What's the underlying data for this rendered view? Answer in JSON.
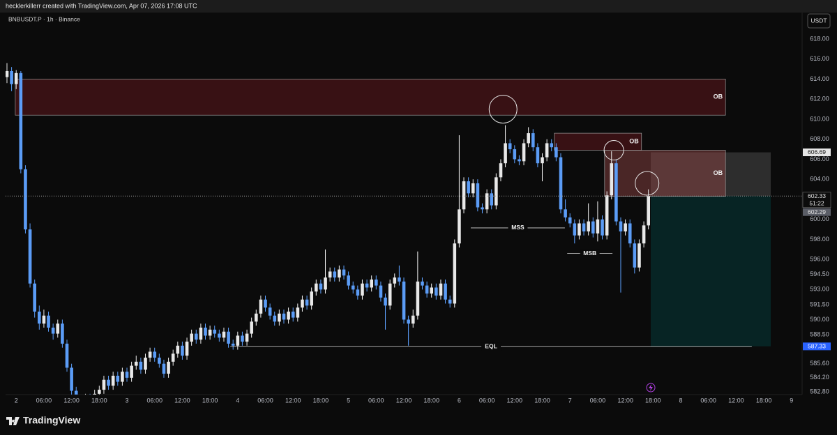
{
  "header": "hecklerkillerr created with TradingView.com, Apr 07, 2026 17:08 UTC",
  "footer": "TradingView",
  "chart_data": {
    "type": "candlestick",
    "title": "BNBUSDT.P · 1h · Binance",
    "currency": "USDT",
    "up_color": "#e8e8e8",
    "down_color": "#5b9cf6",
    "open": [
      614.2,
      614.8,
      613.5,
      614.6,
      605.0,
      599.0,
      593.6,
      590.8,
      589.6,
      590.4,
      589.2,
      588.6,
      589.6,
      587.6,
      585.2,
      582.9,
      582.0,
      581.6,
      582.2,
      581.8,
      582.6,
      583.0,
      584.0,
      583.4,
      584.4,
      583.8,
      584.8,
      584.2,
      585.4,
      585.8,
      585.0,
      586.2,
      586.8,
      586.2,
      585.6,
      584.6,
      585.8,
      586.6,
      587.4,
      586.4,
      587.8,
      588.6,
      588.0,
      589.2,
      588.4,
      589.0,
      588.6,
      588.2,
      588.8,
      587.6,
      587.4,
      588.4,
      587.8,
      588.6,
      589.8,
      590.6,
      592.0,
      591.2,
      590.4,
      589.8,
      590.6,
      590.0,
      590.8,
      590.2,
      591.2,
      592.0,
      591.4,
      592.8,
      593.6,
      593.0,
      594.2,
      594.8,
      594.2,
      595.0,
      594.4,
      593.4,
      593.0,
      592.4,
      593.6,
      593.2,
      594.0,
      593.4,
      592.2,
      591.4,
      593.6,
      594.2,
      593.8,
      590.0,
      589.6,
      590.4,
      593.8,
      593.4,
      592.6,
      593.2,
      592.4,
      593.6,
      592.0,
      591.6,
      597.6,
      601.0,
      603.8,
      602.6,
      603.6,
      601.2,
      601.0,
      602.6,
      601.4,
      604.2,
      605.6,
      607.6,
      607.0,
      606.0,
      605.8,
      607.6,
      608.6,
      607.2,
      605.6,
      606.2,
      607.6,
      607.2,
      606.2,
      601.0,
      600.2,
      599.6,
      598.4,
      599.6,
      598.8,
      599.8,
      598.6,
      600.0,
      598.4,
      602.4,
      605.6,
      599.8,
      598.8,
      599.6,
      597.6,
      595.2,
      597.6,
      599.4
    ],
    "high": [
      615.6,
      615.2,
      614.9,
      614.8,
      605.4,
      599.6,
      594.0,
      591.4,
      591.0,
      590.8,
      589.6,
      590.0,
      590.0,
      588.0,
      585.6,
      583.3,
      582.4,
      582.6,
      582.6,
      583.0,
      583.4,
      584.4,
      584.4,
      584.8,
      584.8,
      585.2,
      585.2,
      585.8,
      586.4,
      586.2,
      586.6,
      587.2,
      587.2,
      586.6,
      586.0,
      586.2,
      587.0,
      587.8,
      587.8,
      588.2,
      589.0,
      589.0,
      589.6,
      589.6,
      589.4,
      589.4,
      589.0,
      589.2,
      589.2,
      588.0,
      588.8,
      588.8,
      589.0,
      590.2,
      591.0,
      592.4,
      592.4,
      591.6,
      590.8,
      591.0,
      591.0,
      591.2,
      591.2,
      591.6,
      592.4,
      592.4,
      593.2,
      594.0,
      594.0,
      597.0,
      595.2,
      595.2,
      595.4,
      595.4,
      594.8,
      593.8,
      593.4,
      594.0,
      594.0,
      594.4,
      594.4,
      593.8,
      592.6,
      594.0,
      594.6,
      595.4,
      594.2,
      590.4,
      591.0,
      596.8,
      594.2,
      593.8,
      593.6,
      593.6,
      594.0,
      594.0,
      592.4,
      598.0,
      608.4,
      604.2,
      604.2,
      604.0,
      604.0,
      601.6,
      603.0,
      603.0,
      604.6,
      606.0,
      609.4,
      608.0,
      607.4,
      606.4,
      608.0,
      609.2,
      609.0,
      607.6,
      606.6,
      608.0,
      608.0,
      607.6,
      606.6,
      602.0,
      600.6,
      600.0,
      600.0,
      600.0,
      601.6,
      600.2,
      601.8,
      600.4,
      602.8,
      606.8,
      606.0,
      600.2,
      600.0,
      600.0,
      598.0,
      598.0,
      599.8,
      603.0
    ],
    "low": [
      613.6,
      612.8,
      613.0,
      604.6,
      598.6,
      593.2,
      590.2,
      589.0,
      589.2,
      588.8,
      588.0,
      588.2,
      587.2,
      584.8,
      582.4,
      581.6,
      581.2,
      581.2,
      581.4,
      581.4,
      582.2,
      582.6,
      583.0,
      583.0,
      583.4,
      583.4,
      583.8,
      583.8,
      585.0,
      584.6,
      584.6,
      585.8,
      585.8,
      585.2,
      584.2,
      584.2,
      585.4,
      586.2,
      586.0,
      586.0,
      587.4,
      587.6,
      587.6,
      588.0,
      588.0,
      588.2,
      587.8,
      587.8,
      587.2,
      587.0,
      587.0,
      587.4,
      587.4,
      588.2,
      589.4,
      590.2,
      590.8,
      590.0,
      589.4,
      589.4,
      589.6,
      589.6,
      589.8,
      589.8,
      590.8,
      591.0,
      591.0,
      592.4,
      592.6,
      592.6,
      593.8,
      593.8,
      593.8,
      594.0,
      593.0,
      592.6,
      592.0,
      592.0,
      592.8,
      592.8,
      593.0,
      591.8,
      589.0,
      591.0,
      593.2,
      593.4,
      589.6,
      587.4,
      589.2,
      590.0,
      593.0,
      592.2,
      592.2,
      592.0,
      592.0,
      591.6,
      591.2,
      591.2,
      597.2,
      600.6,
      602.2,
      602.2,
      600.8,
      600.6,
      600.6,
      601.0,
      601.0,
      603.8,
      605.2,
      606.6,
      605.6,
      605.4,
      605.4,
      607.2,
      606.8,
      605.2,
      603.8,
      605.8,
      606.8,
      605.8,
      600.6,
      599.8,
      599.2,
      597.6,
      598.0,
      598.4,
      598.4,
      598.2,
      597.8,
      598.0,
      598.0,
      602.0,
      599.4,
      592.7,
      598.4,
      597.2,
      594.6,
      594.8,
      597.2,
      599.0
    ],
    "close": [
      614.8,
      613.5,
      614.6,
      605.0,
      599.0,
      593.6,
      590.8,
      589.6,
      590.4,
      589.2,
      588.6,
      589.6,
      587.6,
      585.2,
      582.9,
      582.0,
      581.6,
      582.2,
      581.8,
      582.6,
      583.0,
      584.0,
      583.4,
      584.4,
      583.8,
      584.8,
      584.2,
      585.4,
      585.8,
      585.0,
      586.2,
      586.8,
      586.2,
      585.6,
      584.6,
      585.8,
      586.6,
      587.4,
      586.4,
      587.8,
      588.6,
      588.0,
      589.2,
      588.4,
      589.0,
      588.6,
      588.2,
      588.8,
      587.6,
      587.4,
      588.4,
      587.8,
      588.6,
      589.8,
      590.6,
      592.0,
      591.2,
      590.4,
      589.8,
      590.6,
      590.0,
      590.8,
      590.2,
      591.2,
      592.0,
      591.4,
      592.8,
      593.6,
      593.0,
      594.2,
      594.8,
      594.2,
      595.0,
      594.4,
      593.4,
      593.0,
      592.4,
      593.6,
      593.2,
      594.0,
      593.4,
      592.2,
      591.4,
      593.6,
      594.2,
      593.8,
      590.0,
      589.6,
      590.4,
      593.8,
      593.4,
      592.6,
      593.2,
      592.4,
      593.6,
      592.0,
      591.6,
      597.6,
      601.0,
      603.8,
      602.6,
      603.6,
      601.2,
      601.0,
      602.6,
      601.4,
      604.2,
      605.6,
      607.6,
      607.0,
      606.0,
      605.8,
      607.6,
      608.6,
      607.2,
      605.6,
      606.2,
      607.6,
      607.2,
      606.2,
      601.0,
      600.2,
      599.6,
      598.4,
      599.6,
      598.8,
      599.8,
      598.6,
      600.0,
      598.4,
      602.4,
      605.6,
      599.8,
      598.8,
      599.6,
      597.6,
      595.2,
      597.6,
      599.4,
      602.33
    ],
    "xlim": [
      -0.3,
      172.3
    ],
    "xticks": [
      2,
      {
        "value": 8,
        "label": "06:00"
      },
      {
        "value": 14,
        "label": "12:00"
      },
      {
        "value": 20,
        "label": "18:00"
      },
      {
        "value": 26,
        "label": "3"
      },
      {
        "value": 32,
        "label": "06:00"
      },
      {
        "value": 38,
        "label": "12:00"
      },
      {
        "value": 44,
        "label": "18:00"
      },
      {
        "value": 50,
        "label": "4"
      },
      {
        "value": 56,
        "label": "06:00"
      },
      {
        "value": 62,
        "label": "12:00"
      },
      {
        "value": 68,
        "label": "18:00"
      },
      {
        "value": 74,
        "label": "5"
      },
      {
        "value": 80,
        "label": "06:00"
      },
      {
        "value": 86,
        "label": "12:00"
      },
      {
        "value": 92,
        "label": "18:00"
      },
      {
        "value": 98,
        "label": "6"
      },
      {
        "value": 104,
        "label": "06:00"
      },
      {
        "value": 110,
        "label": "12:00"
      },
      {
        "value": 116,
        "label": "18:00"
      },
      {
        "value": 122,
        "label": "7"
      },
      {
        "value": 128,
        "label": "06:00"
      },
      {
        "value": 134,
        "label": "12:00"
      },
      {
        "value": 140,
        "label": "18:00"
      },
      {
        "value": 146,
        "label": "8"
      },
      {
        "value": 152,
        "label": "06:00"
      },
      {
        "value": 158,
        "label": "12:00"
      },
      {
        "value": 164,
        "label": "18:00"
      },
      {
        "value": 170,
        "label": "9"
      }
    ],
    "ylim": [
      582.52,
      620.64
    ],
    "yticks": [
      {
        "value": 618,
        "label": "618.00"
      },
      {
        "value": 616,
        "label": "616.00"
      },
      {
        "value": 614,
        "label": "614.00"
      },
      {
        "value": 612,
        "label": "612.00"
      },
      {
        "value": 610,
        "label": "610.00"
      },
      {
        "value": 608,
        "label": "608.00"
      },
      {
        "value": 606,
        "label": "606.00"
      },
      {
        "value": 604,
        "label": "604.00"
      },
      {
        "value": 600,
        "label": "600.00"
      },
      {
        "value": 598,
        "label": "598.00"
      },
      {
        "value": 596,
        "label": "596.00"
      },
      {
        "value": 594.5,
        "label": "594.50"
      },
      {
        "value": 593,
        "label": "593.00"
      },
      {
        "value": 591.5,
        "label": "591.50"
      },
      {
        "value": 590,
        "label": "590.00"
      },
      {
        "value": 588.5,
        "label": "588.50"
      },
      {
        "value": 585.6,
        "label": "585.60"
      },
      {
        "value": 584.2,
        "label": "584.20"
      },
      {
        "value": 582.8,
        "label": "582.80"
      }
    ],
    "grid": false,
    "zones": [
      {
        "label": "OB",
        "top": 614.0,
        "bottom": 610.4,
        "start": 1.8,
        "end": 155.7,
        "color": "rgba(110,25,30,0.45)"
      },
      {
        "label": "OB",
        "top": 608.6,
        "bottom": 606.9,
        "start": 118.6,
        "end": 137.5,
        "color": "rgba(110,25,30,0.45)"
      },
      {
        "label": "OB",
        "top": 606.9,
        "bottom": 602.3,
        "start": 129.5,
        "end": 155.7,
        "color": "rgba(150,70,70,0.45)"
      }
    ],
    "position": {
      "top": 606.69,
      "entry": 602.33,
      "bottom": 587.33,
      "start": 139.5,
      "end": 165.5,
      "profit_color": "rgba(110,110,110,0.35)",
      "stop_color": "rgba(0,90,90,0.32)"
    },
    "levels": [
      {
        "label": "MSS",
        "value": 599.15,
        "start": 100.5,
        "end": 120.9
      },
      {
        "label": "MSB",
        "value": 596.6,
        "start": 121.4,
        "end": 131.2
      },
      {
        "label": "EQL",
        "value": 587.3,
        "start": 48.4,
        "end": 161.4
      }
    ],
    "circles": [
      {
        "index": 107.5,
        "price": 611.0
      },
      {
        "index": 131.5,
        "price": 606.9
      },
      {
        "index": 138.7,
        "price": 603.6
      }
    ],
    "last_price": 602.33,
    "countdown": "51:22",
    "price_labels": [
      {
        "value": 606.69,
        "bg": "#e6e6e6",
        "fg": "#111111"
      },
      {
        "value": 602.33,
        "bg": "#0c0c0c",
        "fg": "#e6e6e6"
      },
      {
        "value": 602.29,
        "bg": "#5a5d66",
        "fg": "#e6e6e6"
      },
      {
        "value": 587.33,
        "bg": "#2962ff",
        "fg": "#ffffff"
      }
    ]
  }
}
